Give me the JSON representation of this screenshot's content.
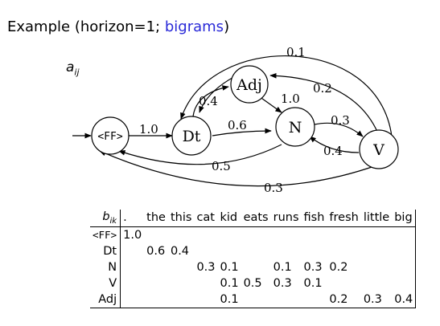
{
  "title": {
    "prefix": "Example (horizon=1; ",
    "highlight": "bigrams",
    "suffix": ")"
  },
  "a_label": {
    "base": "a",
    "sub": "ij"
  },
  "nodes": [
    {
      "id": "ff",
      "label": "<FF>"
    },
    {
      "id": "dt",
      "label": "Dt"
    },
    {
      "id": "adj",
      "label": "Adj"
    },
    {
      "id": "n",
      "label": "N"
    },
    {
      "id": "v",
      "label": "V"
    }
  ],
  "edges": [
    {
      "id": "ff-dt",
      "label": "1.0"
    },
    {
      "id": "dt-n",
      "label": "0.6"
    },
    {
      "id": "dt-adj",
      "label": "0.4"
    },
    {
      "id": "adj-dt",
      "label": "0.1"
    },
    {
      "id": "adj-n",
      "label": "1.0"
    },
    {
      "id": "v-adj",
      "label": "0.2"
    },
    {
      "id": "n-v",
      "label": "0.3"
    },
    {
      "id": "v-n",
      "label": "0.4"
    },
    {
      "id": "n-ff",
      "label": "0.5"
    },
    {
      "id": "v-ff",
      "label": "0.3"
    }
  ],
  "b_label": {
    "base": "b",
    "sub": "ik"
  },
  "table": {
    "columns": [
      ".",
      "the",
      "this",
      "cat",
      "kid",
      "eats",
      "runs",
      "fish",
      "fresh",
      "little",
      "big"
    ],
    "rows": [
      {
        "label": "<FF>",
        "cells": [
          "1.0",
          "",
          "",
          "",
          "",
          "",
          "",
          "",
          "",
          "",
          ""
        ]
      },
      {
        "label": "Dt",
        "cells": [
          "",
          "0.6",
          "0.4",
          "",
          "",
          "",
          "",
          "",
          "",
          "",
          ""
        ]
      },
      {
        "label": "N",
        "cells": [
          "",
          "",
          "",
          "0.3",
          "0.1",
          "",
          "0.1",
          "0.3",
          "0.2",
          "",
          ""
        ]
      },
      {
        "label": "V",
        "cells": [
          "",
          "",
          "",
          "",
          "0.1",
          "0.5",
          "0.3",
          "0.1",
          "",
          "",
          ""
        ]
      },
      {
        "label": "Adj",
        "cells": [
          "",
          "",
          "",
          "",
          "0.1",
          "",
          "",
          "",
          "0.2",
          "0.3",
          "0.4"
        ]
      }
    ]
  }
}
